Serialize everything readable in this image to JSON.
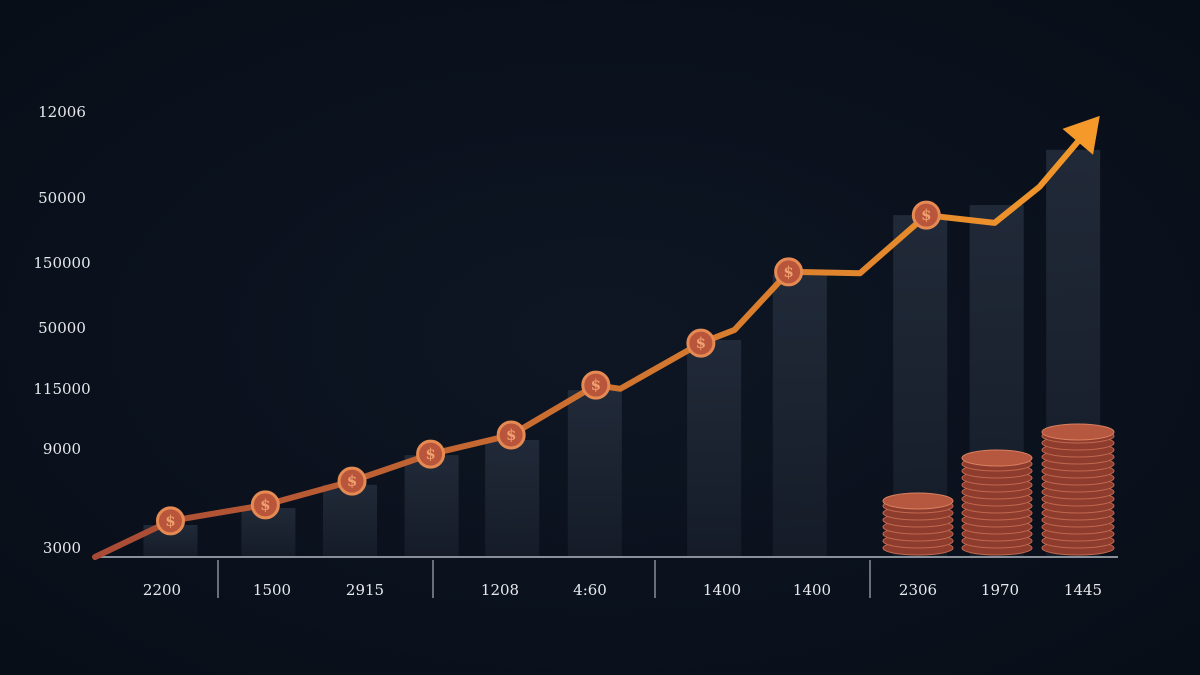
{
  "chart_data": {
    "type": "line",
    "y_axis_labels": [
      "12006",
      "50000",
      "150000",
      "50000",
      "115000",
      "9000",
      "3000"
    ],
    "x_axis_labels": [
      "2200",
      "1500",
      "2915",
      "1208",
      "4:60",
      "1400",
      "1400",
      "2306",
      "1970",
      "1445"
    ],
    "xlim": [
      0,
      100
    ],
    "ylim": [
      0,
      100
    ],
    "coin_symbol": "$",
    "line": {
      "x": [
        0,
        7.4,
        16.7,
        25.2,
        32.9,
        40.8,
        49.1,
        51.5,
        59.4,
        62.7,
        68.0,
        75.0,
        81.5,
        88.2,
        92.6,
        98.0
      ],
      "values": [
        0,
        7.9,
        11.4,
        16.6,
        22.5,
        26.7,
        37.6,
        36.8,
        46.8,
        49.7,
        62.4,
        62.1,
        74.8,
        73.1,
        81.0,
        95.2
      ],
      "color_start": "#a84a36",
      "color_end": "#f59a2a"
    },
    "coins": {
      "x": [
        7.4,
        16.7,
        25.2,
        32.9,
        40.8,
        49.1,
        59.4,
        68.0,
        81.5
      ],
      "values": [
        7.9,
        11.4,
        16.6,
        22.5,
        26.7,
        37.6,
        46.8,
        62.4,
        74.8
      ],
      "color": "#b8553b"
    },
    "bars": {
      "x": [
        7.4,
        17.0,
        25.0,
        33.0,
        40.9,
        49.0,
        60.7,
        69.1,
        80.9,
        88.4,
        95.9
      ],
      "values": [
        7.0,
        10.7,
        15.8,
        22.3,
        25.6,
        36.5,
        47.5,
        61.7,
        74.8,
        77.0,
        89.1
      ],
      "color": "#1c2433"
    }
  }
}
